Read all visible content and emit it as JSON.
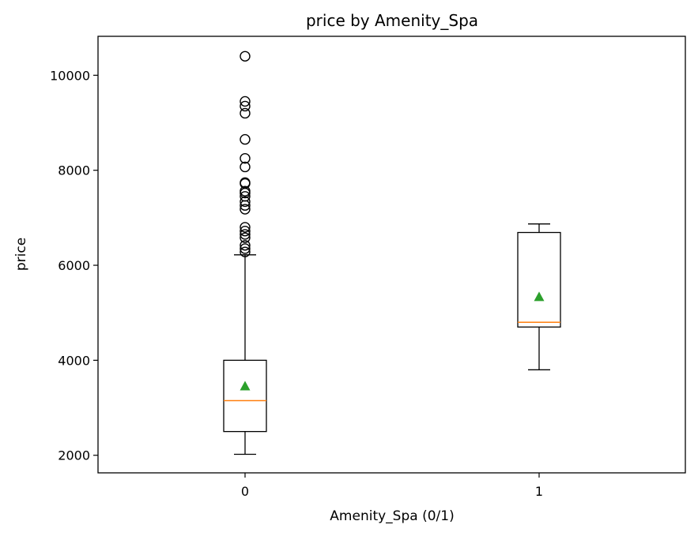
{
  "chart_data": {
    "type": "box",
    "title": "price by Amenity_Spa",
    "xlabel": "Amenity_Spa (0/1)",
    "ylabel": "price",
    "categories": [
      "0",
      "1"
    ],
    "ylim": [
      1630,
      10820
    ],
    "yticks": [
      2000,
      4000,
      6000,
      8000,
      10000
    ],
    "grid": false,
    "boxes": [
      {
        "category": "0",
        "whisker_low": 2020,
        "q1": 2500,
        "median": 3150,
        "mean": 3450,
        "q3": 4000,
        "whisker_high": 6220,
        "outliers": [
          6280,
          6350,
          6420,
          6580,
          6650,
          6720,
          6800,
          7180,
          7260,
          7340,
          7450,
          7520,
          7560,
          7720,
          7740,
          8070,
          8250,
          8650,
          9200,
          9350,
          9450,
          10400
        ]
      },
      {
        "category": "1",
        "whisker_low": 3800,
        "q1": 4700,
        "median": 4800,
        "mean": 5330,
        "q3": 6690,
        "whisker_high": 6870,
        "outliers": []
      }
    ],
    "colors": {
      "box": "#000000",
      "median": "#ff7f0e",
      "mean": "#2ca02c",
      "outlier": "#000000"
    }
  }
}
